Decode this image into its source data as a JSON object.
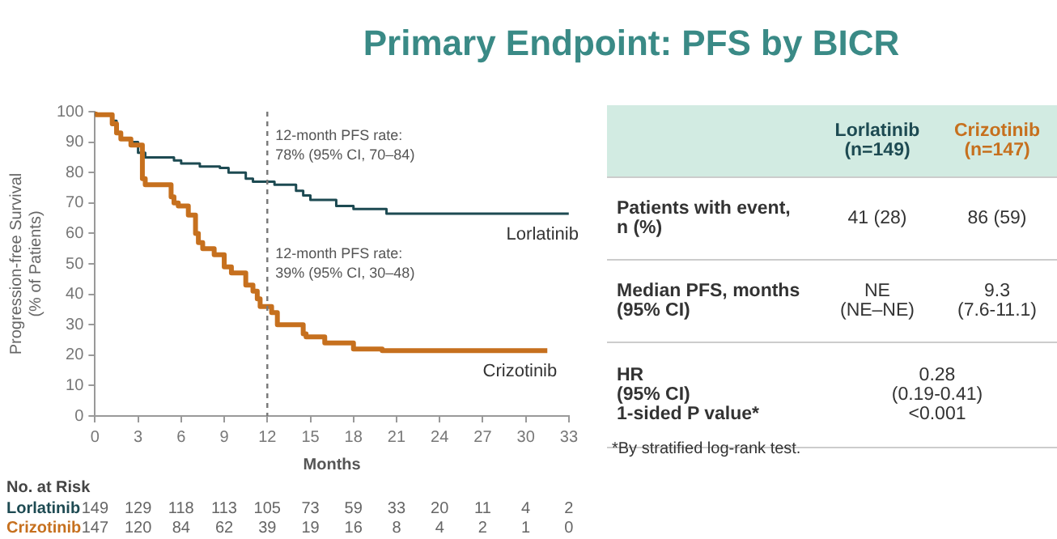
{
  "chart_data": [
    {
      "type": "step",
      "title": "Primary Endpoint: PFS by BICR",
      "xlabel": "Months",
      "ylabel": "Progression-free Survival\n(% of Patients)",
      "xlim": [
        0,
        33
      ],
      "xticks": [
        0,
        3,
        6,
        9,
        12,
        15,
        18,
        21,
        24,
        27,
        30,
        33
      ],
      "ylim": [
        0,
        100
      ],
      "yticks": [
        0,
        10,
        20,
        30,
        40,
        50,
        60,
        70,
        80,
        90,
        100
      ],
      "grid": false,
      "legend": false,
      "marker": "none",
      "series": [
        {
          "name": "Lorlatinib",
          "color": "#1d4a52",
          "x": [
            0,
            1.2,
            1.5,
            1.8,
            2.5,
            3,
            3.5,
            5.5,
            6,
            7.3,
            8.7,
            9.3,
            10.5,
            11,
            12.5,
            14,
            14.5,
            15,
            16.8,
            18,
            20.3,
            20.5,
            33
          ],
          "values": [
            100,
            99,
            97,
            93,
            91,
            90,
            86.5,
            85,
            84,
            83,
            82,
            81.5,
            80,
            78,
            77,
            76,
            74,
            72.5,
            71,
            69,
            68,
            66.5,
            66.5
          ]
        },
        {
          "name": "Crizotinib",
          "color": "#c6701e",
          "x": [
            0,
            1.2,
            1.5,
            1.8,
            2.5,
            3.3,
            3.5,
            5.3,
            5.5,
            5.8,
            6.5,
            7,
            7.2,
            7.5,
            8.3,
            9,
            9.5,
            10.5,
            11,
            11.3,
            11.5,
            12.3,
            12.7,
            14.5,
            14.7,
            16,
            18,
            20,
            20.2,
            31.5
          ],
          "values": [
            100,
            99,
            96,
            93,
            91,
            89,
            78,
            76,
            72,
            70,
            69,
            66,
            60,
            57,
            55,
            53,
            49,
            47,
            43,
            41,
            38.5,
            36,
            34,
            30,
            27,
            26,
            24,
            22,
            21.5,
            21.5
          ]
        }
      ],
      "ref_lines": [
        {
          "axis": "x",
          "value": 12,
          "line_style": "dashed",
          "color": "#777777"
        }
      ],
      "annotations": [
        {
          "text": "12-month PFS rate:\n78% (95% CI, 70–84)",
          "x": 12,
          "y": 78
        },
        {
          "text": "12-month PFS rate:\n39% (95% CI, 30–48)",
          "x": 12,
          "y": 39
        }
      ]
    },
    {
      "type": "other",
      "title": "No. at Risk",
      "y_categories": [
        "Lorlatinib",
        "Crizotinib"
      ],
      "cell_labels": [
        [
          "149",
          "129",
          "118",
          "113",
          "105",
          "73",
          "59",
          "33",
          "20",
          "11",
          "4",
          "2"
        ],
        [
          "147",
          "120",
          "84",
          "62",
          "39",
          "19",
          "16",
          "8",
          "4",
          "2",
          "1",
          "0"
        ]
      ]
    },
    {
      "type": "other",
      "categories": [
        "Lorlatinib\n(n=149)",
        "Crizotinib\n(n=147)"
      ],
      "y_categories": [
        "Patients with event,\nn (%)",
        "Median PFS, months\n(95% CI)",
        "HR\n(95% CI)\n1-sided P value*"
      ],
      "cell_labels": [
        [
          "41 (28)",
          "86 (59)"
        ],
        [
          "NE\n(NE–NE)",
          "9.3\n(7.6-11.1)"
        ],
        [
          "0.28\n(0.19-0.41)\n<0.001"
        ]
      ],
      "annotations": [
        "*By stratified log-rank test."
      ]
    }
  ]
}
